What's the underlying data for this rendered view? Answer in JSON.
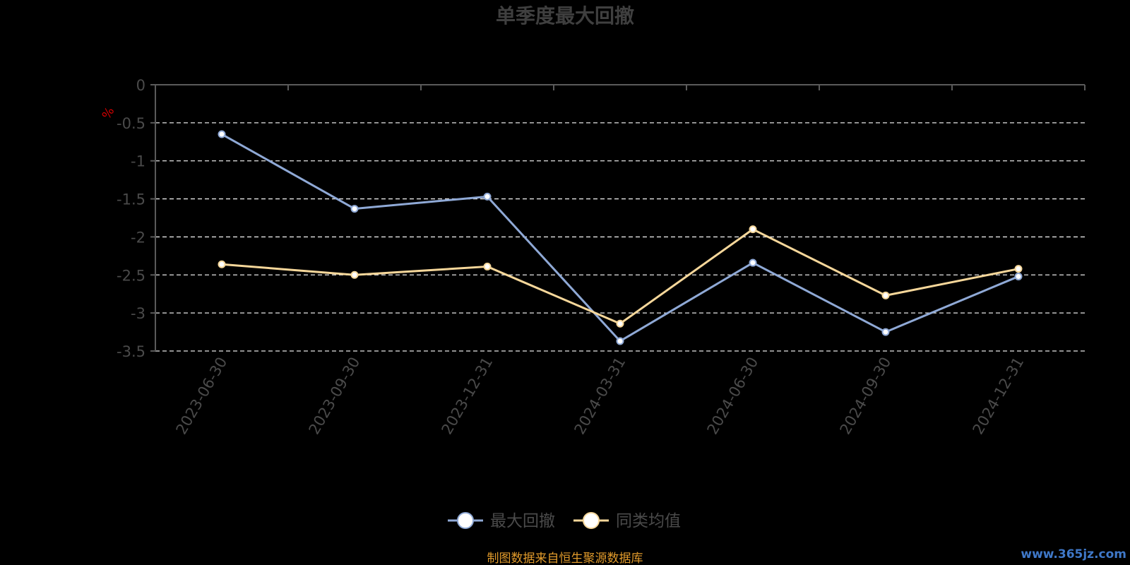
{
  "chart_data": {
    "type": "line",
    "title": "单季度最大回撤",
    "ylabel": "%",
    "ylim": [
      -3.5,
      0
    ],
    "yticks": [
      0,
      -0.5,
      -1,
      -1.5,
      -2,
      -2.5,
      -3,
      -3.5
    ],
    "grid": true,
    "legend_position": "bottom-center",
    "categories": [
      "2023-06-30",
      "2023-09-30",
      "2023-12-31",
      "2024-03-31",
      "2024-06-30",
      "2024-09-30",
      "2024-12-31"
    ],
    "series": [
      {
        "name": "最大回撤",
        "color": "#8fa9d6",
        "values": [
          -0.65,
          -1.63,
          -1.47,
          -3.37,
          -2.34,
          -3.25,
          -2.52
        ]
      },
      {
        "name": "同类均值",
        "color": "#f6d79a",
        "values": [
          -2.36,
          -2.5,
          -2.39,
          -3.14,
          -1.9,
          -2.77,
          -2.42
        ]
      }
    ]
  },
  "footer": {
    "source": "制图数据来自恒生聚源数据库",
    "watermark": "www.365jz.com"
  }
}
